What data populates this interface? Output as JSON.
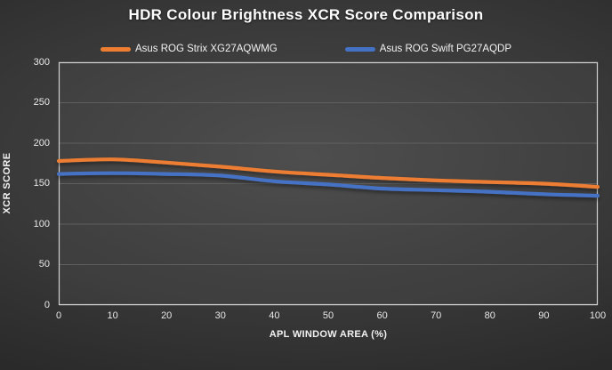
{
  "title": "HDR Colour Brightness XCR Score Comparison",
  "colors": {
    "background_dark": "#2a2a2a",
    "background_light": "#484848",
    "gridline": "#5f5f5f",
    "plot_border": "#cfcfcf",
    "text": "#f2f2f2",
    "series_orange": "#ED7D31",
    "series_blue": "#4472C4"
  },
  "chart_data": {
    "type": "line",
    "title": "HDR Colour Brightness XCR Score Comparison",
    "xlabel": "APL WINDOW AREA (%)",
    "ylabel": "XCR SCORE",
    "xlim": [
      0,
      100
    ],
    "ylim": [
      0,
      300
    ],
    "x_ticks": [
      0,
      10,
      20,
      30,
      40,
      50,
      60,
      70,
      80,
      90,
      100
    ],
    "y_ticks": [
      0,
      50,
      100,
      150,
      200,
      250,
      300
    ],
    "grid": "horizontal",
    "legend_position": "top",
    "x": [
      0,
      10,
      20,
      30,
      40,
      50,
      60,
      70,
      80,
      90,
      100
    ],
    "series": [
      {
        "name": "Asus ROG Strix XG27AQWMG",
        "color": "#ED7D31",
        "values": [
          178,
          180,
          176,
          171,
          165,
          161,
          157,
          154,
          152,
          150,
          146
        ]
      },
      {
        "name": "Asus ROG Swift PG27AQDP",
        "color": "#4472C4",
        "values": [
          162,
          163,
          162,
          160,
          153,
          149,
          144,
          142,
          140,
          137,
          135
        ]
      }
    ]
  }
}
